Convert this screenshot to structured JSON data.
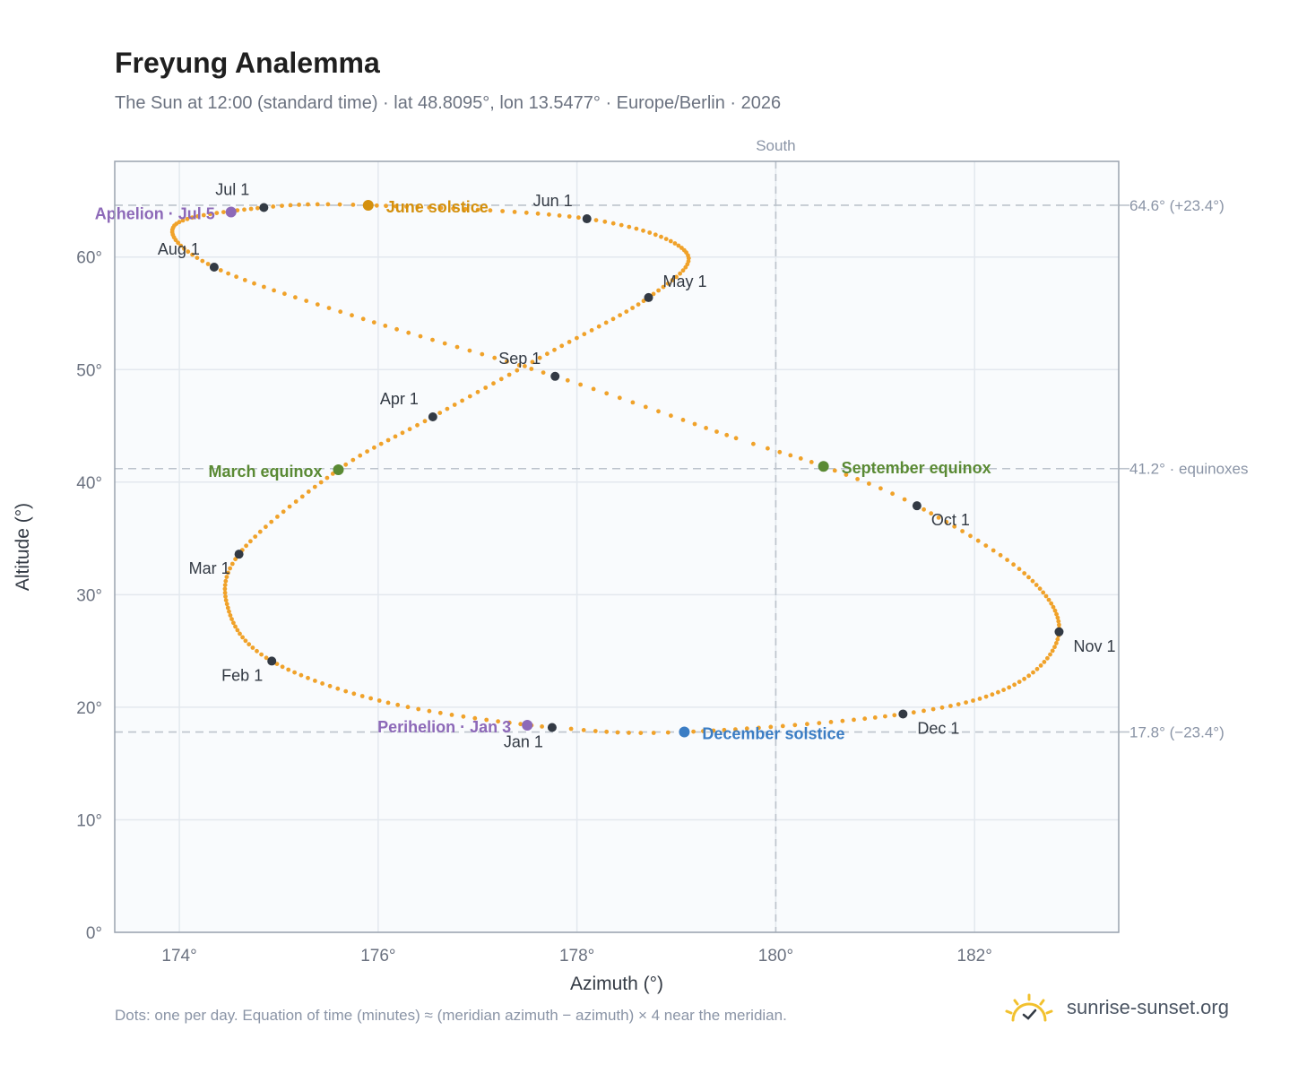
{
  "title": "Freyung Analemma",
  "subtitle": "The Sun at 12:00 (standard time) · lat 48.8095°, lon 13.5477° · Europe/Berlin · 2026",
  "footnote": "Dots: one per day. Equation of time (minutes) ≈ (meridian azimuth − azimuth) × 4 near the meridian.",
  "brand": {
    "name": "sunrise-sunset.org",
    "icon": "sun-icon"
  },
  "colors": {
    "curve": "#f0a22a",
    "month_dot": "#333a44",
    "aphelion": "#8d69b8",
    "perihelion": "#8d69b8",
    "june_solstice": "#d4900d",
    "december_solstice": "#3b7dc4",
    "equinox": "#5a8a34",
    "axis_text": "#6b7280",
    "reference_line": "#bcc3cc"
  },
  "chart_data": {
    "type": "scatter",
    "xlabel": "Azimuth (°)",
    "ylabel": "Altitude (°)",
    "xlim": [
      173.35,
      183.45
    ],
    "ylim": [
      0,
      68.5
    ],
    "xticks": [
      174,
      176,
      178,
      180,
      182
    ],
    "xtick_labels": [
      "174°",
      "176°",
      "178°",
      "180°",
      "182°"
    ],
    "yticks": [
      0,
      10,
      20,
      30,
      40,
      50,
      60
    ],
    "ytick_labels": [
      "0°",
      "10°",
      "20°",
      "30°",
      "40°",
      "50°",
      "60°"
    ],
    "grid": true,
    "meridian": {
      "azimuth": 180,
      "label": "South"
    },
    "reference_lines": [
      {
        "altitude": 64.6,
        "label": "64.6° (+23.4°)"
      },
      {
        "altitude": 41.2,
        "label": "41.2° · equinoxes"
      },
      {
        "altitude": 17.8,
        "label": "17.8° (−23.4°)"
      }
    ],
    "series": [
      {
        "points": [
          {
            "day": 1,
            "az": 177.75,
            "alt": 18.2
          },
          {
            "day": 16,
            "az": 176.1,
            "alt": 20.4
          },
          {
            "day": 32,
            "az": 174.93,
            "alt": 24.1
          },
          {
            "day": 46,
            "az": 174.5,
            "alt": 28.5
          },
          {
            "day": 60,
            "az": 174.6,
            "alt": 33.6
          },
          {
            "day": 78,
            "az": 175.6,
            "alt": 41.1
          },
          {
            "day": 91,
            "az": 176.55,
            "alt": 45.8
          },
          {
            "day": 106,
            "az": 177.7,
            "alt": 51.4
          },
          {
            "day": 121,
            "az": 178.72,
            "alt": 56.4
          },
          {
            "day": 135,
            "az": 179.1,
            "alt": 60.4
          },
          {
            "day": 152,
            "az": 178.1,
            "alt": 63.4
          },
          {
            "day": 172,
            "az": 175.9,
            "alt": 64.6
          },
          {
            "day": 182,
            "az": 174.85,
            "alt": 64.4
          },
          {
            "day": 198,
            "az": 173.95,
            "alt": 62.8
          },
          {
            "day": 213,
            "az": 174.35,
            "alt": 59.1
          },
          {
            "day": 228,
            "az": 175.85,
            "alt": 54.5
          },
          {
            "day": 244,
            "az": 177.78,
            "alt": 49.4
          },
          {
            "day": 259,
            "az": 179.6,
            "alt": 43.9
          },
          {
            "day": 266,
            "az": 180.48,
            "alt": 41.4
          },
          {
            "day": 274,
            "az": 181.42,
            "alt": 37.9
          },
          {
            "day": 289,
            "az": 182.5,
            "alt": 31.9
          },
          {
            "day": 305,
            "az": 182.85,
            "alt": 26.7
          },
          {
            "day": 320,
            "az": 182.4,
            "alt": 22.0
          },
          {
            "day": 335,
            "az": 181.28,
            "alt": 19.4
          },
          {
            "day": 355,
            "az": 179.08,
            "alt": 17.8
          },
          {
            "day": 365,
            "az": 177.8,
            "alt": 18.2
          }
        ]
      }
    ],
    "month_markers": [
      {
        "label": "Jan 1",
        "az": 177.75,
        "alt": 18.2,
        "pos": "bottom-left"
      },
      {
        "label": "Feb 1",
        "az": 174.93,
        "alt": 24.1,
        "pos": "bottom-left"
      },
      {
        "label": "Mar 1",
        "az": 174.6,
        "alt": 33.6,
        "pos": "bottom-left"
      },
      {
        "label": "Apr 1",
        "az": 176.55,
        "alt": 45.8,
        "pos": "top-left"
      },
      {
        "label": "May 1",
        "az": 178.72,
        "alt": 56.4,
        "pos": "top-right"
      },
      {
        "label": "Jun 1",
        "az": 178.1,
        "alt": 63.4,
        "pos": "top-left"
      },
      {
        "label": "Jul 1",
        "az": 174.85,
        "alt": 64.4,
        "pos": "top-left"
      },
      {
        "label": "Aug 1",
        "az": 174.35,
        "alt": 59.1,
        "pos": "top-left"
      },
      {
        "label": "Sep 1",
        "az": 177.78,
        "alt": 49.4,
        "pos": "top-left"
      },
      {
        "label": "Oct 1",
        "az": 181.42,
        "alt": 37.9,
        "pos": "bottom-right"
      },
      {
        "label": "Nov 1",
        "az": 182.85,
        "alt": 26.7,
        "pos": "bottom-right"
      },
      {
        "label": "Dec 1",
        "az": 181.28,
        "alt": 19.4,
        "pos": "bottom-right"
      }
    ],
    "events": [
      {
        "label": "Aphelion · Jul 5",
        "az": 174.52,
        "alt": 64.0,
        "color_key": "aphelion",
        "pos": "left"
      },
      {
        "label": "June solstice",
        "az": 175.9,
        "alt": 64.6,
        "color_key": "june_solstice",
        "pos": "right"
      },
      {
        "label": "March equinox",
        "az": 175.6,
        "alt": 41.1,
        "color_key": "equinox",
        "pos": "left"
      },
      {
        "label": "September equinox",
        "az": 180.48,
        "alt": 41.4,
        "color_key": "equinox",
        "pos": "right"
      },
      {
        "label": "Perihelion · Jan 3",
        "az": 177.5,
        "alt": 18.4,
        "color_key": "perihelion",
        "pos": "left"
      },
      {
        "label": "December solstice",
        "az": 179.08,
        "alt": 17.8,
        "color_key": "december_solstice",
        "pos": "right"
      }
    ]
  }
}
